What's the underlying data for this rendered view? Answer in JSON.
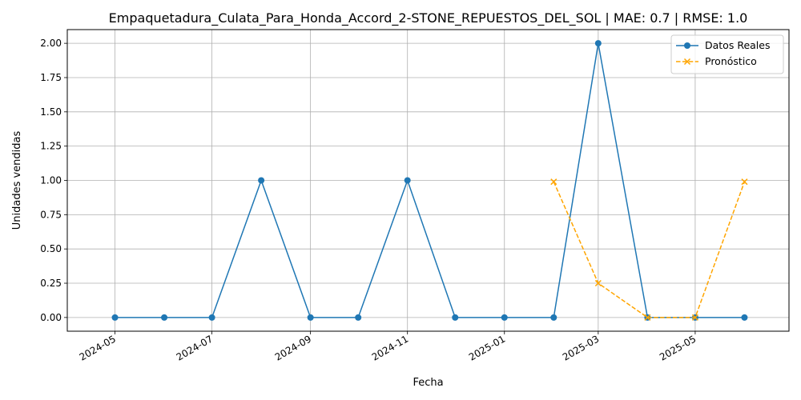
{
  "chart_data": {
    "type": "line",
    "title": "Empaquetadura_Culata_Para_Honda_Accord_2-STONE_REPUESTOS_DEL_SOL | MAE: 0.7 | RMSE: 1.0",
    "xlabel": "Fecha",
    "ylabel": "Unidades vendidas",
    "xlim": [
      "2024-04-01",
      "2025-06-29"
    ],
    "ylim": [
      -0.1,
      2.1
    ],
    "grid": true,
    "legend_position": "top-right",
    "x_ticks": [
      {
        "date": "2024-05-01",
        "label": "2024-05"
      },
      {
        "date": "2024-07-01",
        "label": "2024-07"
      },
      {
        "date": "2024-09-01",
        "label": "2024-09"
      },
      {
        "date": "2024-11-01",
        "label": "2024-11"
      },
      {
        "date": "2025-01-01",
        "label": "2025-01"
      },
      {
        "date": "2025-03-01",
        "label": "2025-03"
      },
      {
        "date": "2025-05-01",
        "label": "2025-05"
      }
    ],
    "y_ticks": [
      {
        "value": 0.0,
        "label": "0.00"
      },
      {
        "value": 0.25,
        "label": "0.25"
      },
      {
        "value": 0.5,
        "label": "0.50"
      },
      {
        "value": 0.75,
        "label": "0.75"
      },
      {
        "value": 1.0,
        "label": "1.00"
      },
      {
        "value": 1.25,
        "label": "1.25"
      },
      {
        "value": 1.5,
        "label": "1.50"
      },
      {
        "value": 1.75,
        "label": "1.75"
      },
      {
        "value": 2.0,
        "label": "2.00"
      }
    ],
    "series": [
      {
        "name": "Datos Reales",
        "color": "#1f77b4",
        "line_style": "solid",
        "marker": "circle",
        "points": [
          {
            "x": "2024-05-01",
            "y": 0
          },
          {
            "x": "2024-06-01",
            "y": 0
          },
          {
            "x": "2024-07-01",
            "y": 0
          },
          {
            "x": "2024-08-01",
            "y": 1
          },
          {
            "x": "2024-09-01",
            "y": 0
          },
          {
            "x": "2024-10-01",
            "y": 0
          },
          {
            "x": "2024-11-01",
            "y": 1
          },
          {
            "x": "2024-12-01",
            "y": 0
          },
          {
            "x": "2025-01-01",
            "y": 0
          },
          {
            "x": "2025-02-01",
            "y": 0
          },
          {
            "x": "2025-03-01",
            "y": 2
          },
          {
            "x": "2025-04-01",
            "y": 0
          },
          {
            "x": "2025-05-01",
            "y": 0
          },
          {
            "x": "2025-06-01",
            "y": 0
          }
        ]
      },
      {
        "name": "Pronóstico",
        "color": "#ffa500",
        "line_style": "dashed",
        "marker": "x",
        "points": [
          {
            "x": "2025-02-01",
            "y": 0.99
          },
          {
            "x": "2025-03-01",
            "y": 0.25
          },
          {
            "x": "2025-04-01",
            "y": 0.0
          },
          {
            "x": "2025-05-01",
            "y": 0.0
          },
          {
            "x": "2025-06-01",
            "y": 0.99
          }
        ]
      }
    ]
  }
}
